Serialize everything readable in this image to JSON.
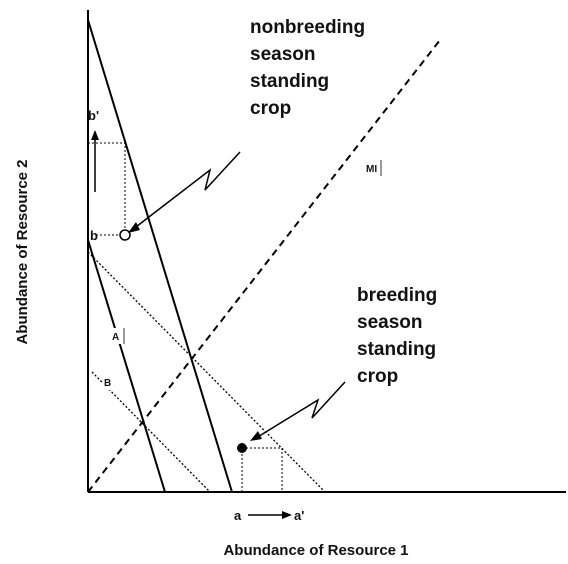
{
  "axes": {
    "x_label": "Abundance of Resource 1",
    "y_label": "Abundance of Resource 2"
  },
  "annotations": {
    "nonbreeding": [
      "nonbreeding",
      "season",
      "standing",
      "crop"
    ],
    "breeding": [
      "breeding",
      "season",
      "standing",
      "crop"
    ]
  },
  "markers": {
    "b_prime": "b'",
    "b": "b",
    "a": "a",
    "a_prime": "a'"
  },
  "line_labels": {
    "mi": "MI",
    "a": "A",
    "b": "B"
  }
}
